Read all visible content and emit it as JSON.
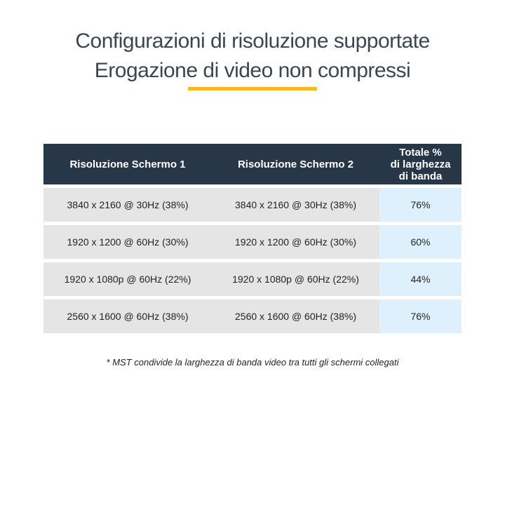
{
  "title": {
    "line1": "Configurazioni di risoluzione supportate",
    "line2": "Erogazione di video non compressi"
  },
  "table": {
    "header": {
      "col1": "Risoluzione Schermo 1",
      "col2": "Risoluzione Schermo 2",
      "col3_lines": [
        "Totale %",
        "di larghezza",
        "di banda"
      ]
    },
    "rows": [
      {
        "screen1": "3840 x 2160 @ 30Hz (38%)",
        "screen2": "3840 x 2160 @ 30Hz (38%)",
        "total": "76%"
      },
      {
        "screen1": "1920 x 1200 @ 60Hz (30%)",
        "screen2": "1920 x 1200 @ 60Hz (30%)",
        "total": "60%"
      },
      {
        "screen1": "1920 x 1080p @ 60Hz (22%)",
        "screen2": "1920 x 1080p @ 60Hz (22%)",
        "total": "44%"
      },
      {
        "screen1": "2560 x 1600 @ 60Hz (38%)",
        "screen2": "2560 x 1600 @ 60Hz (38%)",
        "total": "76%"
      }
    ]
  },
  "footnote": "* MST condivide la larghezza di banda video tra tutti gli schermi collegati",
  "colors": {
    "title_text": "#3b4653",
    "accent_underline": "#ffb71c",
    "header_bg": "#273747",
    "header_text": "#ffffff",
    "row_gray": "#e5e5e6",
    "total_column_blue": "#def0fb",
    "body_text": "#232323"
  },
  "chart_data": {
    "type": "table",
    "title": "Configurazioni di risoluzione supportate — Erogazione di video non compressi",
    "columns": [
      "Risoluzione Schermo 1",
      "Risoluzione Schermo 2",
      "Totale % di larghezza di banda"
    ],
    "rows": [
      [
        "3840 x 2160 @ 30Hz (38%)",
        "3840 x 2160 @ 30Hz (38%)",
        "76%"
      ],
      [
        "1920 x 1200 @ 60Hz (30%)",
        "1920 x 1200 @ 60Hz (30%)",
        "60%"
      ],
      [
        "1920 x 1080p @ 60Hz (22%)",
        "1920 x 1080p @ 60Hz (22%)",
        "44%"
      ],
      [
        "2560 x 1600 @ 60Hz (38%)",
        "2560 x 1600 @ 60Hz (38%)",
        "76%"
      ]
    ],
    "bandwidth_totals_percent": [
      76,
      60,
      44,
      76
    ],
    "footnote": "* MST condivide la larghezza di banda video tra tutti gli schermi collegati",
    "layout": {
      "header_style": "dark-navy",
      "total_column_highlight": "light-blue",
      "grid": "row-gaps-white"
    }
  }
}
